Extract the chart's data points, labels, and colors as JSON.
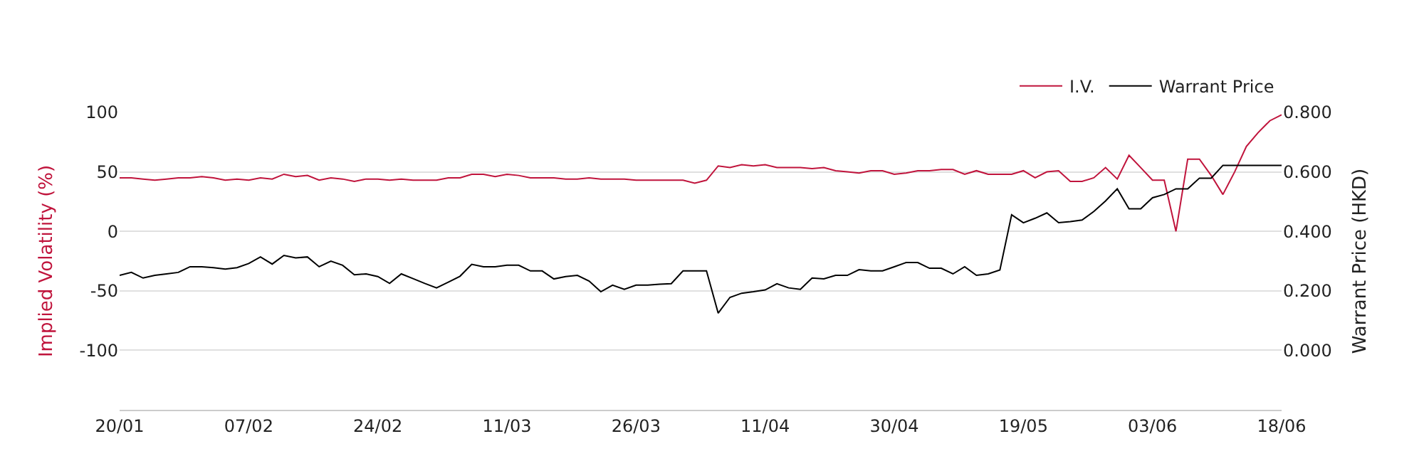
{
  "chart_data": {
    "type": "line",
    "categories": [
      "20/01",
      null,
      null,
      null,
      null,
      null,
      null,
      null,
      null,
      null,
      null,
      "07/02",
      null,
      null,
      null,
      null,
      null,
      null,
      null,
      null,
      null,
      null,
      "24/02",
      null,
      null,
      null,
      null,
      null,
      null,
      null,
      null,
      null,
      null,
      "11/03",
      null,
      null,
      null,
      null,
      null,
      null,
      null,
      null,
      null,
      null,
      "26/03",
      null,
      null,
      null,
      null,
      null,
      null,
      null,
      null,
      null,
      null,
      "11/04",
      null,
      null,
      null,
      null,
      null,
      null,
      null,
      null,
      null,
      null,
      "30/04",
      null,
      null,
      null,
      null,
      null,
      null,
      null,
      null,
      null,
      null,
      "19/05",
      null,
      null,
      null,
      null,
      null,
      null,
      null,
      null,
      null,
      null,
      "03/06",
      null,
      null,
      null,
      null,
      null,
      null,
      null,
      null,
      null,
      null,
      "18/06"
    ],
    "series": [
      {
        "name": "I.V.",
        "color": "#c0143c",
        "values": [
          45,
          45,
          44,
          43,
          44,
          45,
          45,
          46,
          45,
          43,
          44,
          43,
          45,
          44,
          48,
          46,
          47,
          43,
          45,
          44,
          42,
          44,
          44,
          43,
          44,
          43,
          43,
          43,
          45,
          45,
          48,
          48,
          46,
          48,
          47,
          45,
          45,
          45,
          44,
          44,
          45,
          44,
          44,
          44,
          43,
          43,
          43,
          43,
          43,
          40.5,
          43,
          55,
          53.6,
          56,
          55,
          56,
          53.6,
          53.6,
          53.6,
          52.8,
          53.6,
          51,
          50,
          49,
          51,
          51,
          48,
          49,
          51,
          51,
          52,
          52,
          48,
          51,
          48,
          48,
          48,
          51,
          45,
          50,
          51,
          42,
          42,
          45,
          53.6,
          44,
          64,
          53.6,
          43,
          43,
          0,
          60.7,
          60.7,
          47,
          31,
          50,
          71.4,
          83,
          93,
          98
        ]
      },
      {
        "name": "Warrant Price",
        "color": "#000000",
        "axis": "y2",
        "values": [
          0.252,
          0.262,
          0.243,
          0.252,
          0.257,
          0.262,
          0.281,
          0.281,
          0.278,
          0.273,
          0.278,
          0.292,
          0.314,
          0.29,
          0.319,
          0.311,
          0.314,
          0.281,
          0.3,
          0.286,
          0.254,
          0.257,
          0.248,
          0.225,
          0.257,
          0.241,
          0.225,
          0.21,
          0.229,
          0.249,
          0.289,
          0.281,
          0.281,
          0.286,
          0.286,
          0.267,
          0.267,
          0.24,
          0.248,
          0.252,
          0.233,
          0.197,
          0.219,
          0.205,
          0.219,
          0.219,
          0.222,
          0.224,
          0.267,
          0.267,
          0.267,
          0.125,
          0.178,
          0.192,
          0.197,
          0.203,
          0.224,
          0.21,
          0.205,
          0.243,
          0.24,
          0.252,
          0.252,
          0.271,
          0.267,
          0.267,
          0.281,
          0.295,
          0.295,
          0.276,
          0.276,
          0.257,
          0.281,
          0.252,
          0.257,
          0.27,
          0.456,
          0.429,
          0.444,
          0.462,
          0.429,
          0.433,
          0.438,
          0.467,
          0.502,
          0.543,
          0.476,
          0.476,
          0.513,
          0.524,
          0.543,
          0.543,
          0.579,
          0.579,
          0.622,
          0.622,
          0.622,
          0.622,
          0.622,
          0.622
        ]
      }
    ],
    "ylabel": "Implied Volatility (%)",
    "y2label": "Warrant Price (HKD)",
    "ylim": [
      -150,
      100
    ],
    "yticks": [
      -100,
      -50,
      0,
      50,
      100
    ],
    "y2lim": [
      -0.2,
      0.8
    ],
    "y2ticks": [
      {
        "value": 0,
        "label": "0.000"
      },
      {
        "value": 0.2,
        "label": "0.200"
      },
      {
        "value": 0.4,
        "label": "0.400"
      },
      {
        "value": 0.6,
        "label": "0.600"
      },
      {
        "value": 0.8,
        "label": "0.800"
      }
    ],
    "grid": "y",
    "legend": "top right",
    "marker": "none",
    "line_style": "solid"
  }
}
